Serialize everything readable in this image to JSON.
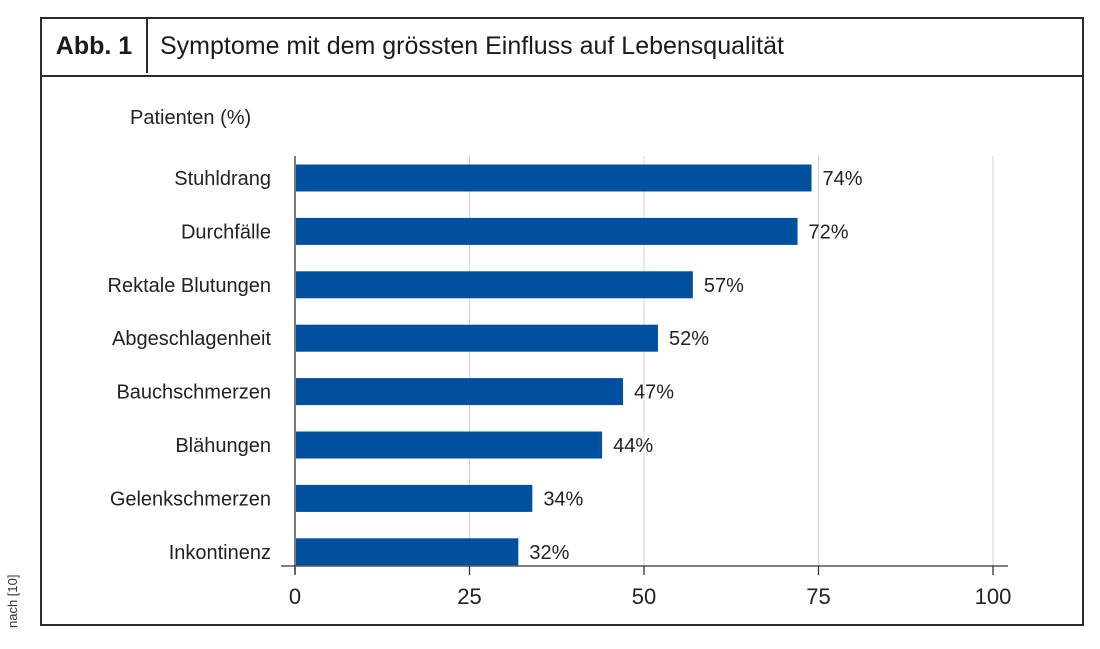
{
  "figure": {
    "label": "Abb. 1",
    "title": "Symptome mit dem grössten Einfluss auf Lebensqualität",
    "source": "nach [10]"
  },
  "chart_data": {
    "type": "bar",
    "orientation": "horizontal",
    "title": "Symptome mit dem grössten Einfluss auf Lebensqualität",
    "ylabel": "Patienten (%)",
    "xlabel": "",
    "categories": [
      "Stuhldrang",
      "Durchfälle",
      "Rektale Blutungen",
      "Abgeschlagenheit",
      "Bauchschmerzen",
      "Blähungen",
      "Gelenkschmerzen",
      "Inkontinenz"
    ],
    "values": [
      74,
      72,
      57,
      52,
      47,
      44,
      34,
      32
    ],
    "data_labels": [
      "74%",
      "72%",
      "57%",
      "52%",
      "47%",
      "44%",
      "34%",
      "32%"
    ],
    "xlim": [
      0,
      100
    ],
    "xticks": [
      0,
      25,
      50,
      75,
      100
    ],
    "xtick_labels": [
      "0",
      "25",
      "50",
      "75",
      "100"
    ],
    "grid": true,
    "bar_color": "#0050a0"
  }
}
